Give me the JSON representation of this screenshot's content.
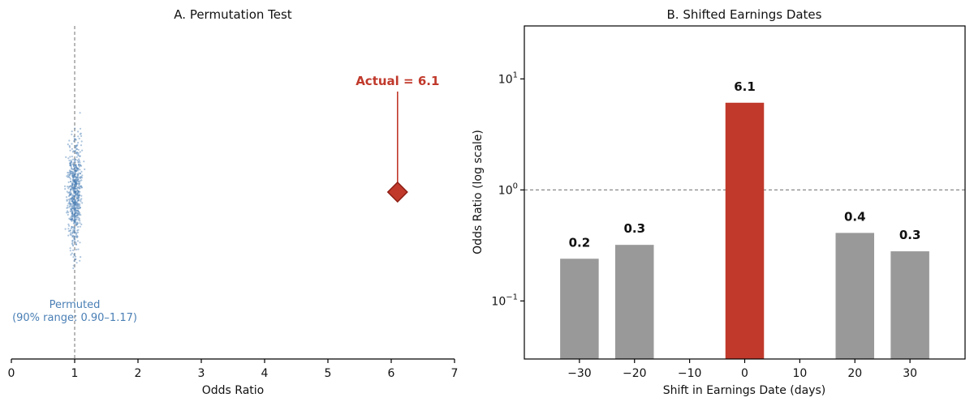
{
  "chart_data": [
    {
      "type": "scatter",
      "title": "A. Permutation Test",
      "xlabel": "Odds Ratio",
      "ylabel": "",
      "xlim": [
        0,
        7
      ],
      "x_ticks": [
        "0",
        "1",
        "2",
        "3",
        "4",
        "5",
        "6",
        "7"
      ],
      "reference_line_x": 1,
      "permuted": {
        "label_line1": "Permuted",
        "label_line2": "(90% range: 0.90–1.17)",
        "range": [
          0.9,
          1.17
        ],
        "center": 1.0,
        "color": "#4a7fb5"
      },
      "actual": {
        "value": 6.1,
        "label": "Actual = 6.1",
        "color": "#c0392b"
      }
    },
    {
      "type": "bar",
      "title": "B. Shifted Earnings Dates",
      "xlabel": "Shift in Earnings Date (days)",
      "ylabel": "Odds Ratio (log scale)",
      "yscale": "log",
      "ylim": [
        0.03,
        30
      ],
      "y_ticks": [
        {
          "value": 0.1,
          "base": "10",
          "exp": "−1"
        },
        {
          "value": 1,
          "base": "10",
          "exp": "0"
        },
        {
          "value": 10,
          "base": "10",
          "exp": "1"
        }
      ],
      "xlim": [
        -40,
        40
      ],
      "x_ticks": [
        {
          "value": -30,
          "label": "−30"
        },
        {
          "value": -20,
          "label": "−20"
        },
        {
          "value": -10,
          "label": "−10"
        },
        {
          "value": 0,
          "label": "0"
        },
        {
          "value": 10,
          "label": "10"
        },
        {
          "value": 20,
          "label": "20"
        },
        {
          "value": 30,
          "label": "30"
        }
      ],
      "reference_line_y": 1,
      "bars": [
        {
          "x": -30,
          "value": 0.24,
          "label": "0.2",
          "highlight": false
        },
        {
          "x": -20,
          "value": 0.32,
          "label": "0.3",
          "highlight": false
        },
        {
          "x": 0,
          "value": 6.1,
          "label": "6.1",
          "highlight": true
        },
        {
          "x": 20,
          "value": 0.41,
          "label": "0.4",
          "highlight": false
        },
        {
          "x": 30,
          "value": 0.28,
          "label": "0.3",
          "highlight": false
        }
      ],
      "colors": {
        "bar": "#999999",
        "highlight": "#c0392b"
      }
    }
  ]
}
